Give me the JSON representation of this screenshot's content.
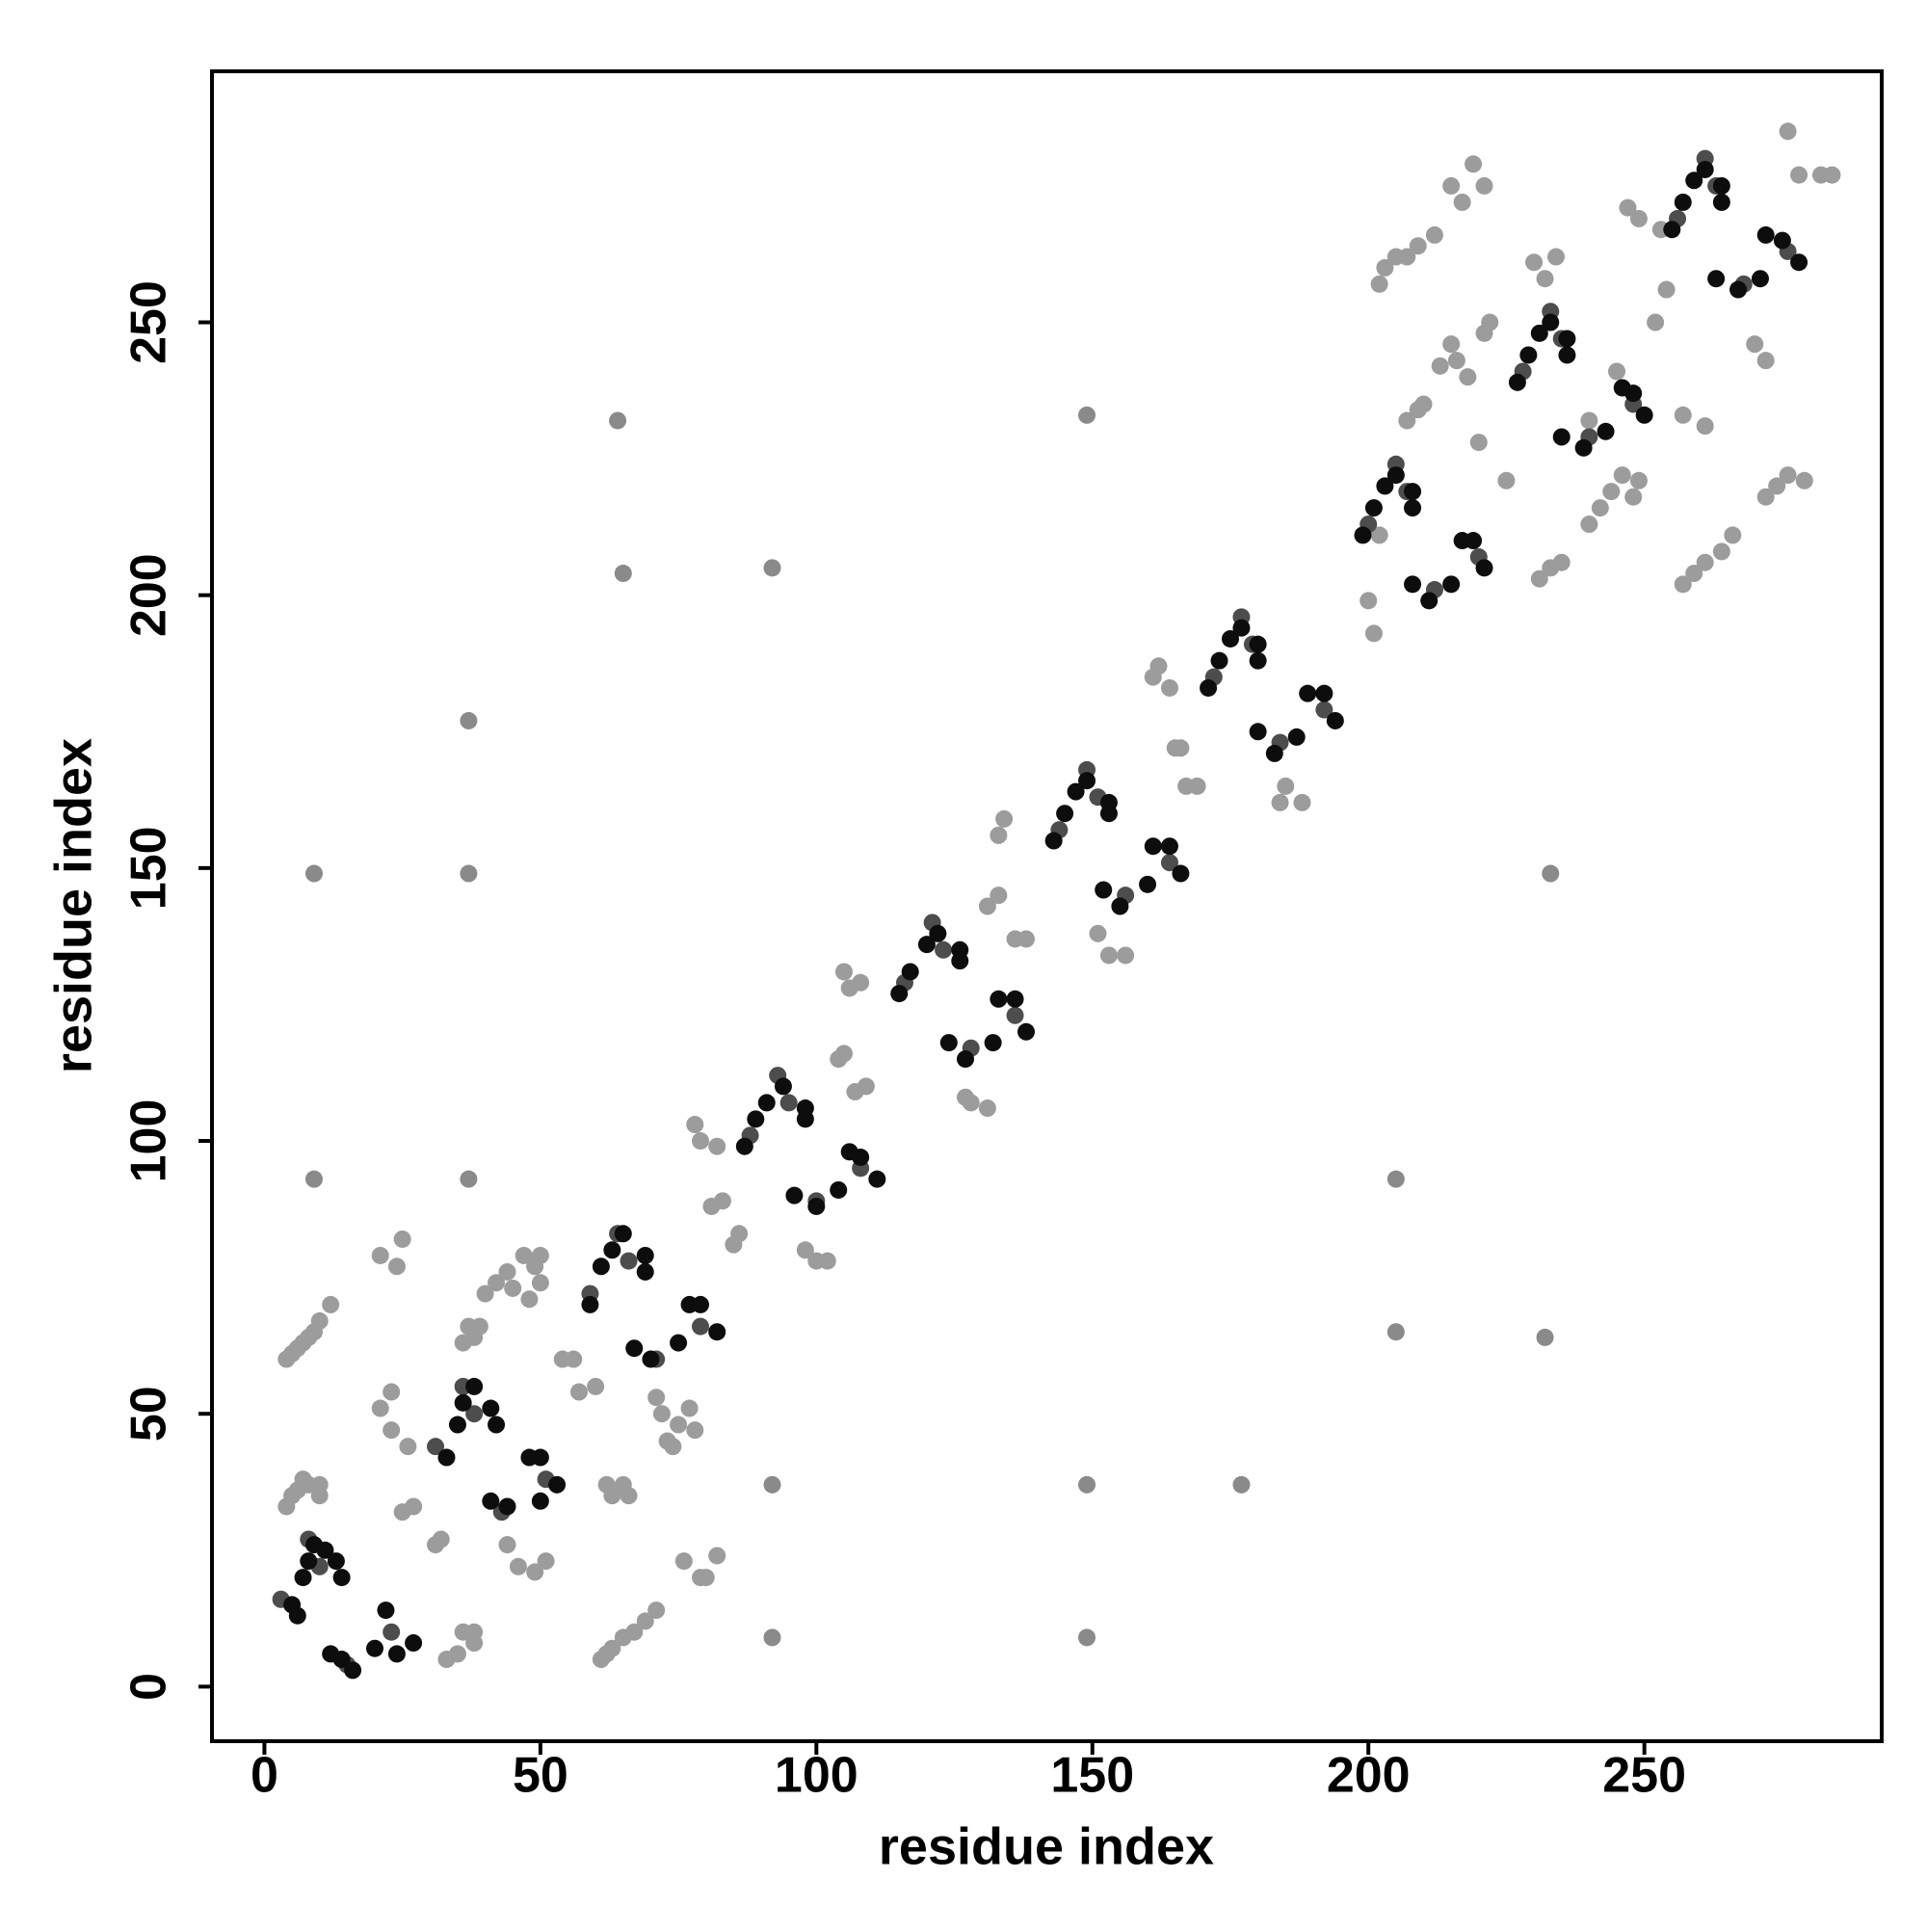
{
  "chart_data": {
    "type": "scatter",
    "xlabel": "residue index",
    "ylabel": "residue index",
    "xlim": [
      -9.5,
      293
    ],
    "ylim": [
      -10,
      296
    ],
    "xticks": [
      0,
      50,
      100,
      150,
      200,
      250
    ],
    "yticks": [
      0,
      50,
      100,
      150,
      200,
      250
    ],
    "grid": false,
    "series": [
      {
        "color": "#9c9c9c",
        "x": [
          4,
          5,
          6,
          7,
          8,
          9,
          10,
          12,
          4,
          5,
          6,
          7,
          8,
          10,
          10,
          21,
          24,
          25,
          21,
          23,
          23,
          26,
          25,
          27,
          31,
          32,
          33,
          35,
          36,
          38,
          38,
          36,
          37,
          38,
          39,
          40,
          42,
          44,
          47,
          49,
          50,
          50,
          48,
          45,
          46,
          49,
          51,
          44,
          54,
          56,
          57,
          60,
          62,
          63,
          65,
          66,
          61,
          62,
          63,
          65,
          67,
          69,
          71,
          71,
          72,
          73,
          75,
          77,
          78,
          76,
          79,
          80,
          82,
          74,
          78,
          79,
          82,
          81,
          83,
          85,
          86,
          98,
          100,
          102,
          104,
          105,
          107,
          109,
          106,
          108,
          105,
          127,
          128,
          131,
          131,
          133,
          133,
          134,
          136,
          138,
          151,
          153,
          156,
          161,
          162,
          164,
          165,
          166,
          167,
          169,
          184,
          185,
          188,
          200,
          201,
          202,
          207,
          209,
          210,
          202,
          203,
          205,
          207,
          209,
          212,
          215,
          217,
          219,
          221,
          213,
          215,
          216,
          218,
          221,
          222,
          220,
          225,
          231,
          233,
          235,
          240,
          242,
          244,
          246,
          248,
          249,
          230,
          232,
          234,
          247,
          249,
          253,
          252,
          254,
          257,
          259,
          261,
          264,
          266,
          257,
          261,
          272,
          274,
          276,
          279,
          270,
          272,
          276,
          278,
          282,
          284,
          245,
          240
        ],
        "values": [
          60,
          61,
          62,
          63,
          64,
          65,
          67,
          70,
          33,
          35,
          36,
          38,
          37,
          37,
          35,
          79,
          77,
          82,
          51,
          54,
          47,
          44,
          32,
          33,
          26,
          27,
          5,
          6,
          10,
          10,
          8,
          63,
          66,
          64,
          66,
          72,
          74,
          76,
          79,
          77,
          79,
          74,
          71,
          73,
          22,
          21,
          23,
          26,
          60,
          60,
          54,
          55,
          37,
          35,
          37,
          35,
          5,
          6,
          7,
          9,
          10,
          12,
          14,
          53,
          50,
          45,
          48,
          51,
          47,
          23,
          20,
          20,
          24,
          44,
          103,
          100,
          99,
          88,
          89,
          81,
          83,
          80,
          78,
          78,
          115,
          116,
          109,
          110,
          128,
          129,
          131,
          108,
          107,
          106,
          143,
          145,
          156,
          159,
          137,
          137,
          138,
          134,
          134,
          185,
          187,
          183,
          172,
          172,
          165,
          165,
          162,
          165,
          162,
          199,
          193,
          211,
          232,
          234,
          235,
          257,
          260,
          262,
          262,
          264,
          266,
          275,
          272,
          279,
          275,
          242,
          246,
          243,
          240,
          248,
          250,
          228,
          221,
          203,
          205,
          206,
          213,
          216,
          219,
          222,
          218,
          221,
          261,
          258,
          262,
          271,
          269,
          267,
          250,
          256,
          202,
          204,
          206,
          208,
          211,
          233,
          231,
          218,
          220,
          222,
          221,
          246,
          243,
          285,
          277,
          277,
          277,
          241,
          232
        ]
      },
      {
        "color": "#8a8a8a",
        "x": [
          9,
          9,
          37,
          37,
          37,
          64,
          65,
          92,
          149,
          233,
          205,
          205,
          232,
          92,
          149,
          177,
          92,
          149
        ],
        "values": [
          149,
          93,
          177,
          149,
          93,
          232,
          204,
          205,
          233,
          149,
          93,
          65,
          64,
          37,
          37,
          37,
          9,
          9
        ]
      },
      {
        "color": "#4d4d4d",
        "x": [
          3,
          10,
          15,
          23,
          8,
          31,
          38,
          43,
          51,
          36,
          59,
          66,
          71,
          79,
          64,
          88,
          95,
          100,
          108,
          93,
          116,
          123,
          128,
          136,
          121,
          144,
          151,
          156,
          164,
          149,
          172,
          179,
          184,
          192,
          177,
          200,
          207,
          212,
          220,
          205,
          228,
          235,
          240,
          248,
          233,
          256,
          263,
          268,
          276,
          261
        ],
        "values": [
          16,
          22,
          4,
          10,
          27,
          44,
          50,
          32,
          38,
          55,
          72,
          78,
          60,
          66,
          83,
          101,
          107,
          89,
          95,
          112,
          129,
          135,
          117,
          123,
          140,
          157,
          163,
          145,
          151,
          168,
          185,
          191,
          173,
          179,
          196,
          213,
          219,
          201,
          207,
          224,
          241,
          247,
          229,
          235,
          252,
          269,
          275,
          257,
          263,
          280
        ]
      },
      {
        "color": "#0d0d0d",
        "x": [
          5,
          6,
          7,
          8,
          9,
          11,
          13,
          14,
          12,
          14,
          16,
          20,
          22,
          24,
          27,
          33,
          35,
          36,
          38,
          41,
          42,
          41,
          44,
          48,
          50,
          50,
          53,
          59,
          61,
          63,
          65,
          69,
          69,
          67,
          70,
          75,
          77,
          79,
          82,
          87,
          89,
          91,
          94,
          98,
          98,
          96,
          100,
          104,
          106,
          108,
          111,
          115,
          117,
          120,
          122,
          126,
          126,
          124,
          127,
          132,
          133,
          136,
          138,
          143,
          145,
          147,
          149,
          153,
          153,
          152,
          155,
          160,
          161,
          164,
          166,
          171,
          173,
          175,
          177,
          180,
          180,
          180,
          183,
          187,
          189,
          192,
          194,
          199,
          201,
          203,
          205,
          208,
          208,
          208,
          211,
          215,
          217,
          219,
          221,
          227,
          229,
          231,
          233,
          236,
          236,
          235,
          239,
          243,
          246,
          248,
          250,
          255,
          257,
          259,
          261,
          264,
          264,
          263,
          267,
          271,
          272,
          275,
          278
        ],
        "values": [
          15,
          13,
          20,
          23,
          26,
          25,
          23,
          20,
          6,
          5,
          3,
          7,
          14,
          6,
          8,
          42,
          48,
          52,
          55,
          51,
          48,
          34,
          33,
          42,
          42,
          34,
          37,
          70,
          77,
          80,
          83,
          79,
          76,
          62,
          60,
          63,
          70,
          70,
          65,
          99,
          104,
          107,
          110,
          106,
          104,
          90,
          88,
          91,
          98,
          97,
          93,
          127,
          131,
          136,
          138,
          135,
          133,
          118,
          115,
          118,
          126,
          126,
          120,
          155,
          160,
          164,
          166,
          162,
          160,
          146,
          143,
          147,
          154,
          154,
          149,
          183,
          188,
          192,
          194,
          191,
          188,
          175,
          171,
          174,
          182,
          182,
          177,
          211,
          216,
          220,
          222,
          219,
          216,
          202,
          199,
          202,
          210,
          210,
          205,
          239,
          244,
          248,
          250,
          247,
          244,
          229,
          227,
          230,
          238,
          237,
          233,
          267,
          272,
          276,
          278,
          275,
          272,
          258,
          256,
          258,
          266,
          265,
          261
        ]
      }
    ]
  }
}
